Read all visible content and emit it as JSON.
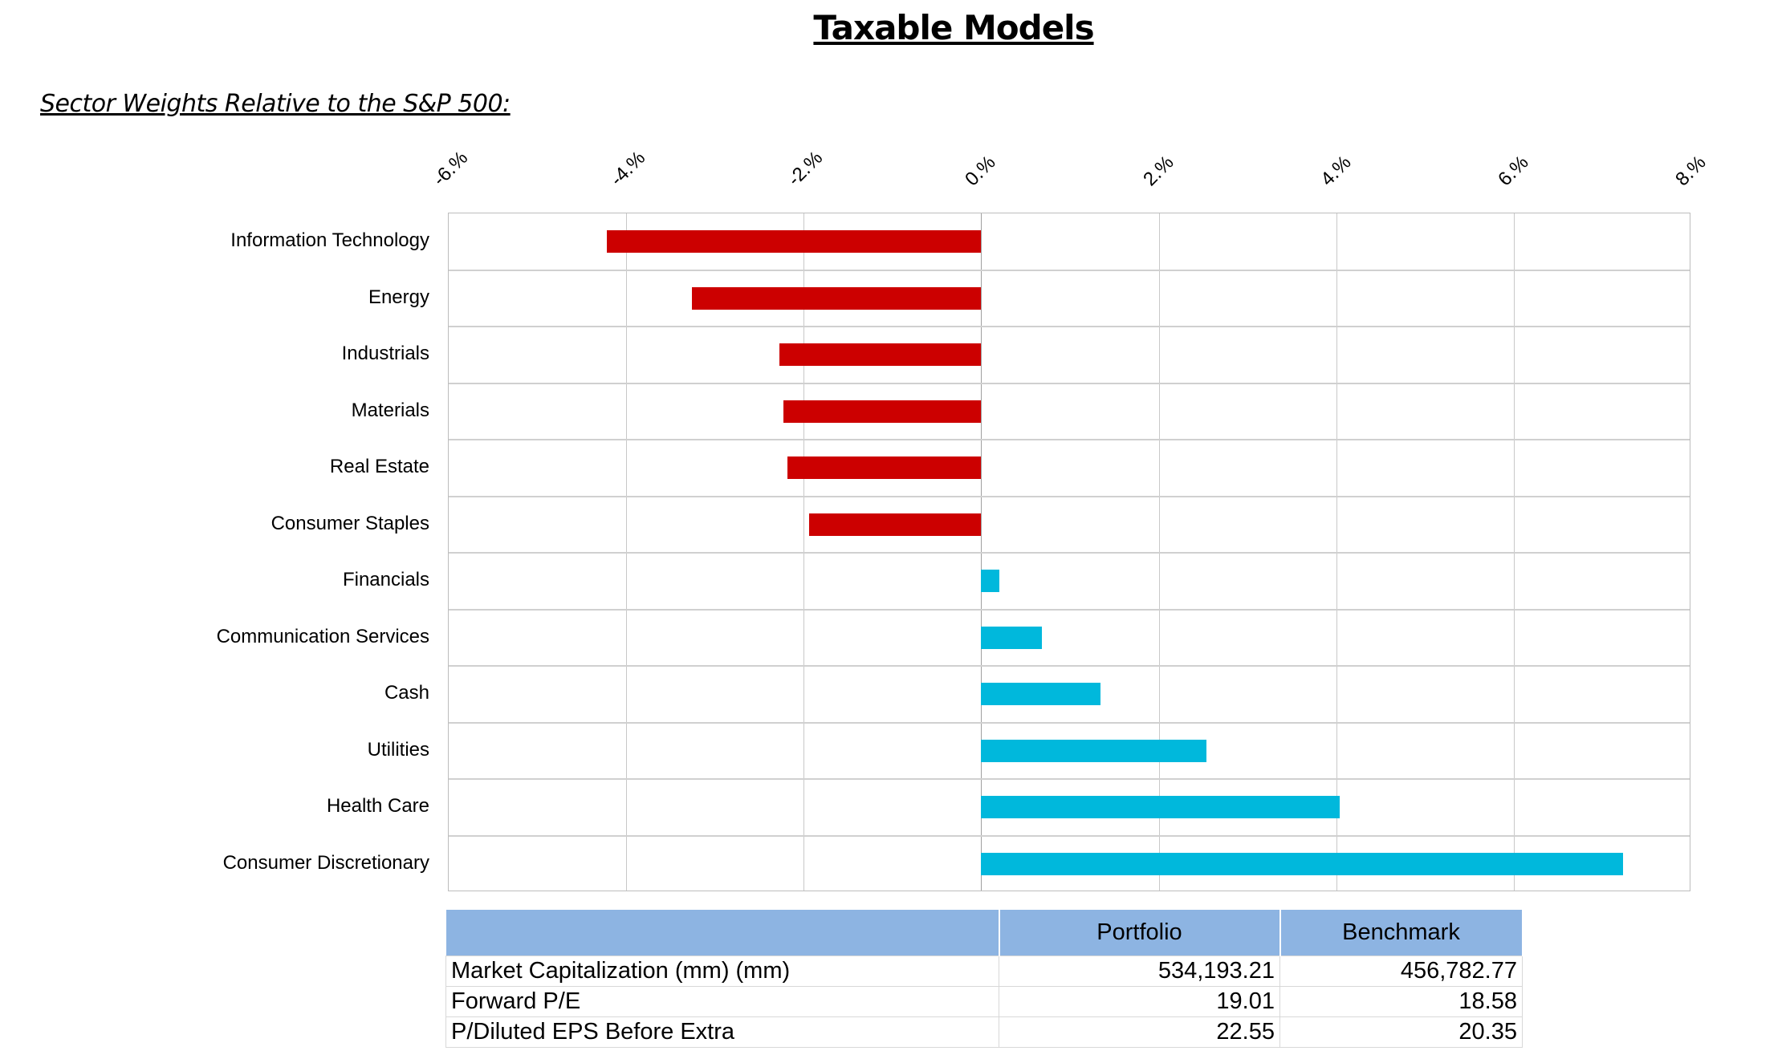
{
  "title": "Taxable Models",
  "subtitle": "Sector Weights Relative to the S&P 500:",
  "chart_data": {
    "type": "bar",
    "orientation": "horizontal",
    "title": "Sector Weights Relative to the S&P 500",
    "xlim": [
      -6,
      8
    ],
    "x_ticks": [
      "-6.%",
      "-4.%",
      "-2.%",
      "0.%",
      "2.%",
      "4.%",
      "6.%",
      "8.%"
    ],
    "tick_values": [
      -6,
      -4,
      -2,
      0,
      2,
      4,
      6,
      8
    ],
    "grid": true,
    "categories": [
      "Information Technology",
      "Energy",
      "Industrials",
      "Materials",
      "Real Estate",
      "Consumer Staples",
      "Financials",
      "Communication Services",
      "Cash",
      "Utilities",
      "Health Care",
      "Consumer Discretionary"
    ],
    "values": [
      -4.22,
      -3.26,
      -2.27,
      -2.23,
      -2.18,
      -1.94,
      0.2,
      0.68,
      1.34,
      2.54,
      4.04,
      7.23
    ],
    "negative_color": "#cc0000",
    "positive_color": "#00b8dc"
  },
  "table": {
    "headers": [
      "",
      "Portfolio",
      "Benchmark"
    ],
    "rows": [
      [
        "Market Capitalization (mm) (mm)",
        "534,193.21",
        "456,782.77"
      ],
      [
        "Forward P/E",
        "19.01",
        "18.58"
      ],
      [
        "P/Diluted EPS Before Extra",
        "22.55",
        "20.35"
      ]
    ]
  }
}
